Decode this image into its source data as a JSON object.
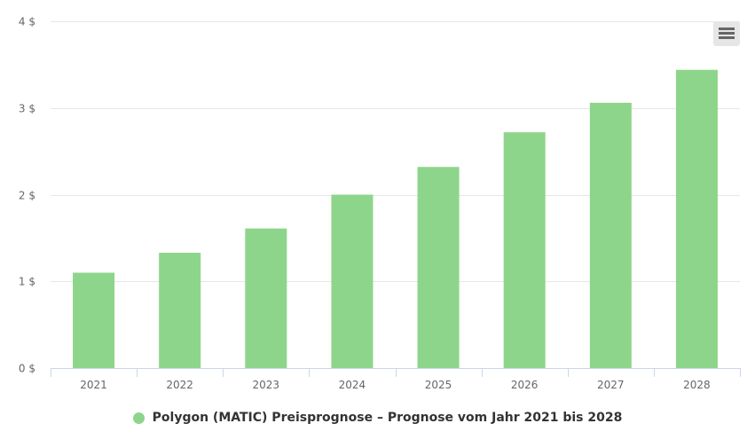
{
  "colors": {
    "series": "#8dd58a",
    "grid": "#e6e6e6",
    "axis": "#ccd6eb",
    "text": "#666666"
  },
  "menu_icon": "hamburger-menu-icon",
  "chart_data": {
    "type": "bar",
    "categories": [
      "2021",
      "2022",
      "2023",
      "2024",
      "2025",
      "2026",
      "2027",
      "2028"
    ],
    "series": [
      {
        "name": "Polygon (MATIC) Preisprognose – Prognose vom Jahr 2021 bis 2028",
        "values": [
          1.1,
          1.33,
          1.61,
          2.0,
          2.32,
          2.72,
          3.06,
          3.44
        ]
      }
    ],
    "ylim": [
      0,
      4
    ],
    "yticks": [
      0,
      1,
      2,
      3,
      4
    ],
    "ytick_labels": [
      "0 $",
      "1 $",
      "2 $",
      "3 $",
      "4 $"
    ],
    "grid": true,
    "legend": "bottom-center",
    "title": "",
    "xlabel": "",
    "ylabel": ""
  }
}
